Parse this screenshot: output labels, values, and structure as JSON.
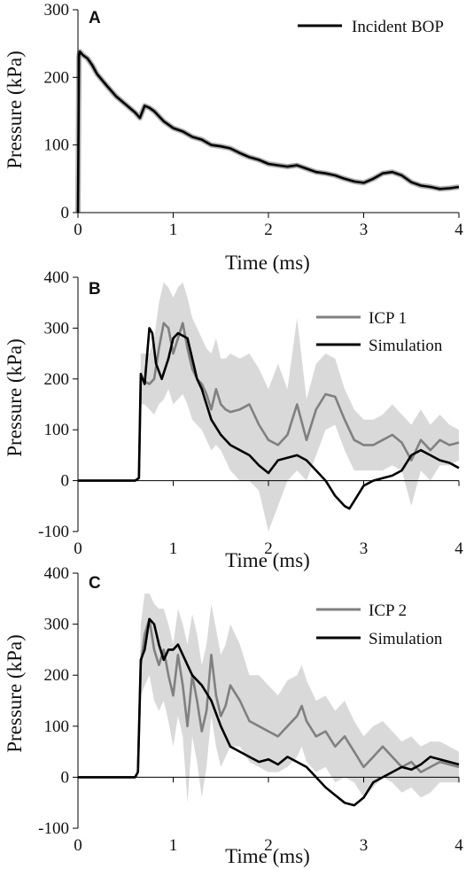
{
  "chart_data": [
    {
      "type": "line",
      "panel_label": "A",
      "xlabel": "Time (ms)",
      "ylabel": "Pressure (kPa)",
      "xlim": [
        0,
        4
      ],
      "ylim": [
        0,
        300
      ],
      "xticks": [
        "0",
        "1",
        "2",
        "3",
        "4"
      ],
      "yticks": [
        "0",
        "100",
        "200",
        "300"
      ],
      "grid": false,
      "legend": "top-right",
      "series": [
        {
          "name": "Incident BOP",
          "color": "#000000",
          "band_color": "#b0b0b0",
          "x": [
            0,
            0.01,
            0.02,
            0.05,
            0.1,
            0.15,
            0.2,
            0.3,
            0.4,
            0.5,
            0.6,
            0.65,
            0.7,
            0.75,
            0.8,
            0.9,
            1.0,
            1.1,
            1.2,
            1.3,
            1.4,
            1.5,
            1.6,
            1.7,
            1.8,
            1.9,
            2.0,
            2.1,
            2.2,
            2.3,
            2.4,
            2.5,
            2.6,
            2.7,
            2.8,
            2.9,
            3.0,
            3.1,
            3.2,
            3.3,
            3.4,
            3.5,
            3.6,
            3.7,
            3.8,
            3.9,
            4.0
          ],
          "y": [
            0,
            230,
            238,
            233,
            228,
            218,
            205,
            188,
            172,
            160,
            148,
            140,
            158,
            155,
            150,
            135,
            125,
            120,
            112,
            108,
            100,
            98,
            95,
            88,
            82,
            78,
            72,
            70,
            68,
            70,
            65,
            60,
            58,
            55,
            50,
            46,
            44,
            50,
            58,
            60,
            55,
            45,
            40,
            38,
            35,
            36,
            38
          ]
        }
      ]
    },
    {
      "type": "line",
      "panel_label": "B",
      "xlabel": "Time (ms)",
      "ylabel": "Pressure (kPa)",
      "xlim": [
        0,
        4
      ],
      "ylim": [
        -100,
        400
      ],
      "xticks": [
        "0",
        "1",
        "2",
        "3",
        "4"
      ],
      "yticks": [
        "-100",
        "0",
        "100",
        "200",
        "300",
        "400"
      ],
      "grid": false,
      "legend": "top-right",
      "series": [
        {
          "name": "ICP 1",
          "color": "#808080",
          "band_color": "#d9d9d9",
          "x": [
            0,
            0.3,
            0.6,
            0.64,
            0.66,
            0.7,
            0.75,
            0.8,
            0.85,
            0.9,
            0.95,
            1.0,
            1.05,
            1.1,
            1.15,
            1.2,
            1.25,
            1.3,
            1.35,
            1.4,
            1.45,
            1.5,
            1.55,
            1.6,
            1.7,
            1.8,
            1.9,
            2.0,
            2.1,
            2.2,
            2.3,
            2.4,
            2.5,
            2.6,
            2.7,
            2.8,
            2.9,
            3.0,
            3.1,
            3.2,
            3.3,
            3.4,
            3.5,
            3.6,
            3.7,
            3.8,
            3.9,
            4.0
          ],
          "y": [
            0,
            0,
            0,
            5,
            200,
            195,
            190,
            200,
            260,
            310,
            300,
            250,
            280,
            310,
            260,
            220,
            200,
            190,
            170,
            140,
            180,
            150,
            140,
            135,
            140,
            150,
            110,
            80,
            70,
            90,
            150,
            80,
            140,
            170,
            165,
            120,
            80,
            70,
            70,
            80,
            90,
            75,
            40,
            80,
            60,
            80,
            70,
            75
          ],
          "band_lower": [
            0,
            0,
            0,
            0,
            150,
            150,
            140,
            130,
            150,
            160,
            180,
            150,
            160,
            170,
            150,
            120,
            110,
            100,
            80,
            60,
            70,
            60,
            40,
            20,
            0,
            0,
            -20,
            -100,
            -50,
            0,
            20,
            0,
            50,
            100,
            110,
            60,
            20,
            20,
            20,
            20,
            30,
            20,
            -50,
            20,
            0,
            30,
            30,
            40
          ],
          "band_upper": [
            0,
            0,
            0,
            10,
            250,
            250,
            250,
            280,
            350,
            390,
            380,
            360,
            380,
            390,
            360,
            320,
            300,
            280,
            260,
            250,
            280,
            240,
            240,
            250,
            240,
            250,
            220,
            180,
            230,
            180,
            320,
            160,
            230,
            250,
            240,
            180,
            140,
            120,
            120,
            130,
            150,
            130,
            110,
            140,
            110,
            130,
            110,
            100
          ]
        },
        {
          "name": "Simulation",
          "color": "#000000",
          "x": [
            0,
            0.3,
            0.6,
            0.64,
            0.66,
            0.7,
            0.75,
            0.78,
            0.82,
            0.88,
            0.95,
            1.0,
            1.05,
            1.1,
            1.15,
            1.2,
            1.25,
            1.3,
            1.35,
            1.4,
            1.5,
            1.6,
            1.7,
            1.8,
            1.9,
            2.0,
            2.1,
            2.2,
            2.3,
            2.4,
            2.5,
            2.6,
            2.7,
            2.8,
            2.85,
            2.9,
            3.0,
            3.1,
            3.2,
            3.3,
            3.4,
            3.5,
            3.6,
            3.7,
            3.8,
            3.9,
            4.0
          ],
          "y": [
            0,
            0,
            0,
            5,
            210,
            190,
            300,
            290,
            230,
            200,
            240,
            280,
            290,
            285,
            280,
            240,
            200,
            180,
            150,
            120,
            90,
            70,
            60,
            50,
            30,
            15,
            40,
            45,
            50,
            40,
            20,
            0,
            -30,
            -50,
            -55,
            -40,
            -10,
            0,
            5,
            10,
            20,
            50,
            60,
            50,
            40,
            35,
            25
          ]
        }
      ]
    },
    {
      "type": "line",
      "panel_label": "C",
      "xlabel": "Time (ms)",
      "ylabel": "Pressure (kPa)",
      "xlim": [
        0,
        4
      ],
      "ylim": [
        -100,
        400
      ],
      "xticks": [
        "0",
        "1",
        "2",
        "3",
        "4"
      ],
      "yticks": [
        "-100",
        "0",
        "100",
        "200",
        "300",
        "400"
      ],
      "grid": false,
      "legend": "top-right",
      "series": [
        {
          "name": "ICP 2",
          "color": "#808080",
          "band_color": "#d9d9d9",
          "x": [
            0,
            0.3,
            0.6,
            0.63,
            0.66,
            0.7,
            0.75,
            0.8,
            0.85,
            0.9,
            0.95,
            1.0,
            1.05,
            1.1,
            1.15,
            1.2,
            1.25,
            1.3,
            1.35,
            1.4,
            1.45,
            1.5,
            1.55,
            1.6,
            1.7,
            1.8,
            1.9,
            2.0,
            2.1,
            2.2,
            2.3,
            2.35,
            2.4,
            2.5,
            2.6,
            2.7,
            2.8,
            2.9,
            3.0,
            3.1,
            3.2,
            3.3,
            3.4,
            3.5,
            3.6,
            3.7,
            3.8,
            3.9,
            4.0
          ],
          "y": [
            0,
            0,
            0,
            10,
            220,
            280,
            310,
            250,
            220,
            250,
            200,
            160,
            240,
            180,
            100,
            200,
            150,
            90,
            130,
            240,
            160,
            120,
            140,
            180,
            150,
            110,
            100,
            90,
            80,
            100,
            120,
            140,
            110,
            80,
            90,
            60,
            80,
            50,
            20,
            40,
            60,
            40,
            20,
            30,
            10,
            20,
            30,
            25,
            20
          ],
          "band_lower": [
            0,
            0,
            0,
            0,
            160,
            180,
            200,
            150,
            130,
            150,
            110,
            60,
            120,
            80,
            -50,
            80,
            30,
            -40,
            20,
            120,
            60,
            20,
            40,
            60,
            60,
            30,
            20,
            10,
            10,
            20,
            40,
            60,
            30,
            10,
            20,
            -10,
            0,
            -10,
            -40,
            -20,
            0,
            -10,
            -30,
            -20,
            -40,
            -30,
            -10,
            -10,
            -10
          ],
          "band_upper": [
            0,
            0,
            0,
            20,
            300,
            360,
            360,
            340,
            330,
            330,
            300,
            260,
            330,
            300,
            260,
            320,
            280,
            220,
            260,
            340,
            290,
            240,
            260,
            300,
            260,
            200,
            200,
            180,
            160,
            190,
            200,
            220,
            190,
            150,
            160,
            130,
            150,
            110,
            80,
            100,
            110,
            90,
            70,
            80,
            60,
            70,
            70,
            60,
            50
          ]
        },
        {
          "name": "Simulation",
          "color": "#000000",
          "x": [
            0,
            0.3,
            0.6,
            0.63,
            0.66,
            0.7,
            0.75,
            0.8,
            0.85,
            0.9,
            0.95,
            1.0,
            1.05,
            1.1,
            1.15,
            1.2,
            1.3,
            1.4,
            1.5,
            1.6,
            1.7,
            1.8,
            1.9,
            2.0,
            2.1,
            2.2,
            2.3,
            2.4,
            2.5,
            2.6,
            2.7,
            2.8,
            2.9,
            3.0,
            3.1,
            3.2,
            3.3,
            3.4,
            3.5,
            3.6,
            3.7,
            3.8,
            3.9,
            4.0
          ],
          "y": [
            0,
            0,
            0,
            10,
            230,
            250,
            310,
            300,
            260,
            230,
            250,
            250,
            260,
            240,
            220,
            200,
            180,
            150,
            100,
            60,
            50,
            40,
            30,
            35,
            25,
            40,
            30,
            20,
            0,
            -20,
            -35,
            -50,
            -55,
            -40,
            -10,
            0,
            10,
            20,
            15,
            25,
            40,
            35,
            30,
            25
          ]
        }
      ]
    }
  ]
}
